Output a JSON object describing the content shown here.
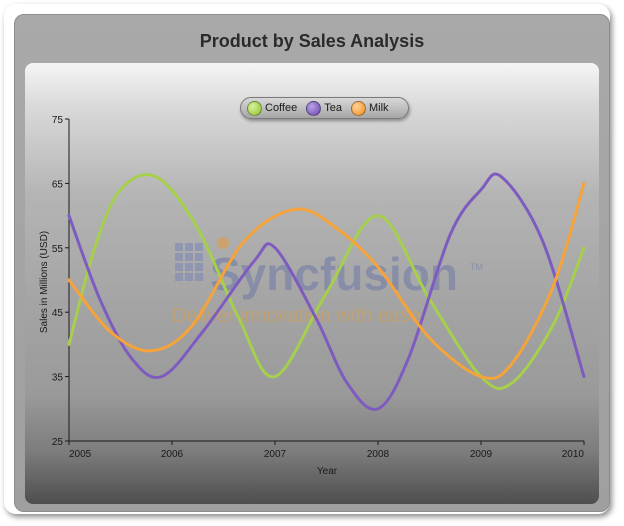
{
  "chart_data": {
    "type": "line",
    "title": "Product by Sales Analysis",
    "xlabel": "Year",
    "ylabel": "Sales in Millions (USD)",
    "x": [
      2005,
      2006,
      2007,
      2008,
      2009,
      2010
    ],
    "xlim": [
      2005,
      2010
    ],
    "ylim": [
      25,
      75
    ],
    "yticks": [
      25,
      35,
      45,
      55,
      65,
      75
    ],
    "grid": false,
    "legend_position": "top",
    "series": [
      {
        "name": "Coffee",
        "color": "#a6cf4e",
        "points": [
          [
            2005.0,
            40
          ],
          [
            2005.25,
            55
          ],
          [
            2005.5,
            64
          ],
          [
            2005.85,
            66
          ],
          [
            2006.25,
            58
          ],
          [
            2006.65,
            44
          ],
          [
            2007.0,
            35
          ],
          [
            2007.5,
            48
          ],
          [
            2008.0,
            60
          ],
          [
            2008.5,
            47
          ],
          [
            2009.0,
            35
          ],
          [
            2009.3,
            34
          ],
          [
            2009.7,
            43
          ],
          [
            2010.0,
            55
          ]
        ]
      },
      {
        "name": "Tea",
        "color": "#7e5cbf",
        "points": [
          [
            2005.0,
            60
          ],
          [
            2005.3,
            47
          ],
          [
            2005.6,
            38
          ],
          [
            2005.9,
            35
          ],
          [
            2006.3,
            42
          ],
          [
            2006.8,
            53
          ],
          [
            2007.0,
            55
          ],
          [
            2007.4,
            44
          ],
          [
            2007.7,
            34
          ],
          [
            2008.0,
            30
          ],
          [
            2008.3,
            38
          ],
          [
            2008.7,
            57
          ],
          [
            2009.0,
            64
          ],
          [
            2009.2,
            66
          ],
          [
            2009.6,
            56
          ],
          [
            2010.0,
            35
          ]
        ]
      },
      {
        "name": "Milk",
        "color": "#f5a33a",
        "points": [
          [
            2005.0,
            50
          ],
          [
            2005.4,
            42
          ],
          [
            2005.8,
            39
          ],
          [
            2006.2,
            43
          ],
          [
            2006.7,
            56
          ],
          [
            2007.2,
            61
          ],
          [
            2007.6,
            58
          ],
          [
            2008.0,
            52
          ],
          [
            2008.5,
            41
          ],
          [
            2009.0,
            35
          ],
          [
            2009.3,
            37
          ],
          [
            2009.7,
            49
          ],
          [
            2010.0,
            65
          ]
        ]
      }
    ]
  },
  "watermark": {
    "brand": "Syncfusion",
    "tm": "TM",
    "tagline": "Deliver innovation with ease"
  }
}
